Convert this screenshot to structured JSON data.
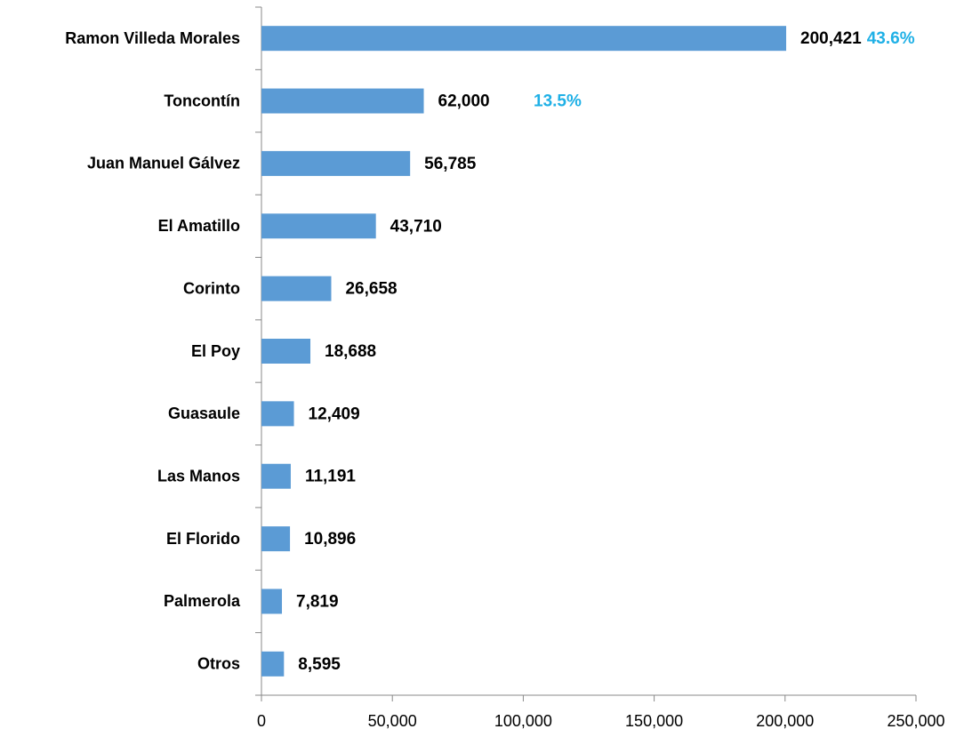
{
  "chart_data": {
    "type": "bar",
    "orientation": "horizontal",
    "categories": [
      "Ramon Villeda Morales",
      "Toncontín",
      "Juan Manuel Gálvez",
      "El Amatillo",
      "Corinto",
      "El Poy",
      "Guasaule",
      "Las Manos",
      "El Florido",
      "Palmerola",
      "Otros"
    ],
    "values": [
      200421,
      62000,
      56785,
      43710,
      26658,
      18688,
      12409,
      11191,
      10896,
      7819,
      8595
    ],
    "value_labels": [
      "200,421",
      "62,000",
      "56,785",
      "43,710",
      "26,658",
      "18,688",
      "12,409",
      "11,191",
      "10,896",
      "7,819",
      "8,595"
    ],
    "share_labels": [
      "43.6%",
      "13.5%",
      null,
      null,
      null,
      null,
      null,
      null,
      null,
      null,
      null
    ],
    "share_color": "#1fb0e6",
    "color": "#5b9bd5",
    "xlim": [
      0,
      250000
    ],
    "xticks": [
      0,
      {
        "value": 50000,
        "label": "50,000"
      },
      {
        "value": 100000,
        "label": "100,000"
      },
      {
        "value": 150000,
        "label": "150,000"
      },
      {
        "value": 200000,
        "label": "200,000"
      },
      {
        "value": 250000,
        "label": "250,000"
      }
    ],
    "grid": false
  }
}
